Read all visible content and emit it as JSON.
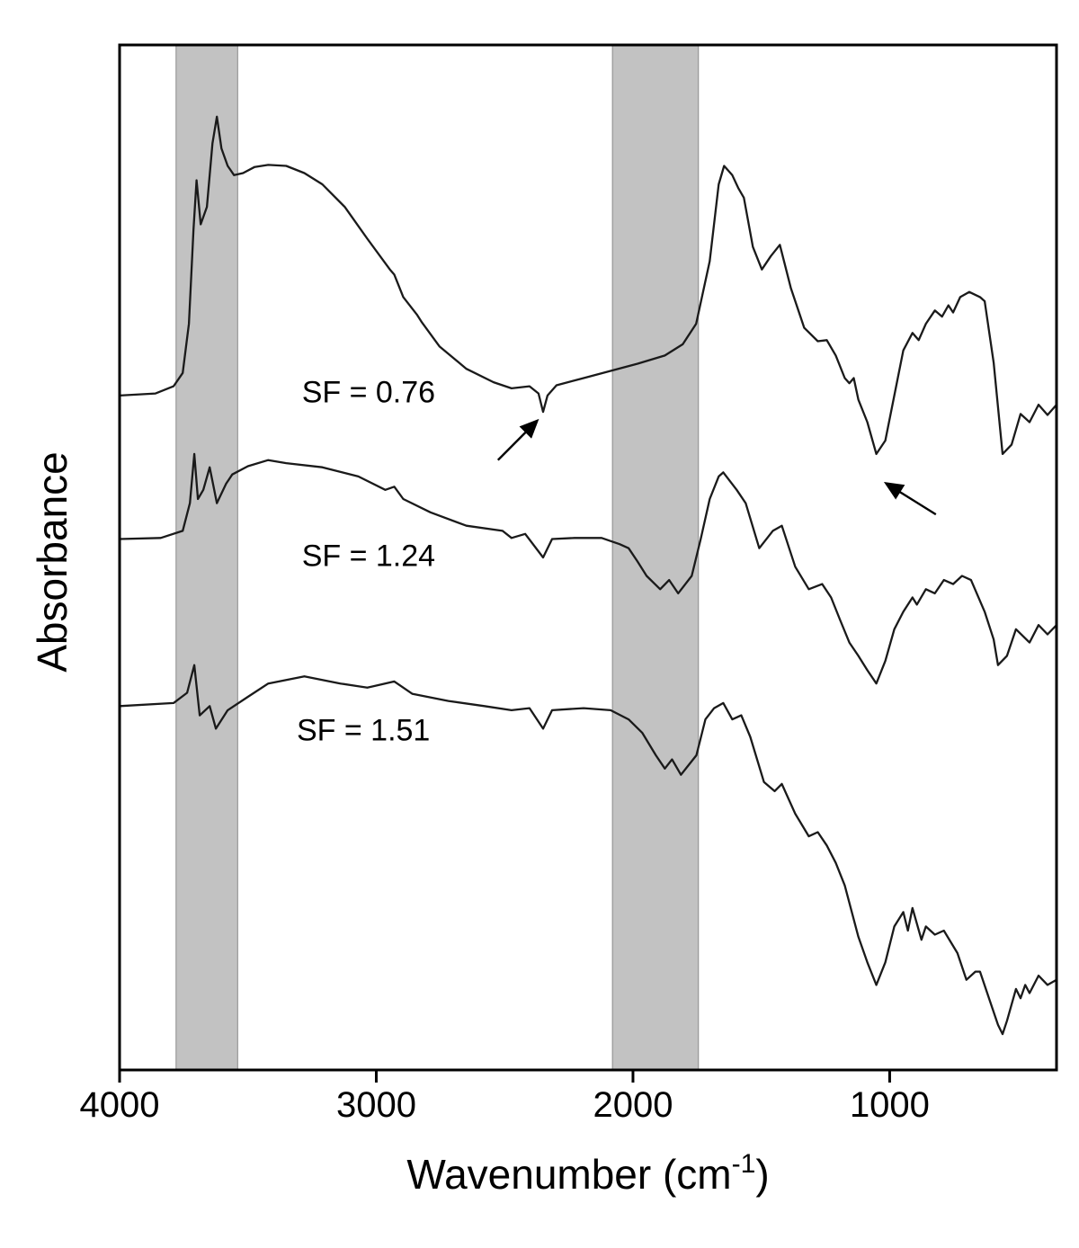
{
  "figure": {
    "background": "#ffffff",
    "ylabel": "Absorbance",
    "xlabel_prefix": "Wavenumber (cm",
    "xlabel_sup": "-1",
    "xlabel_suffix": ")"
  },
  "chart_data": {
    "type": "line",
    "xlabel": "Wavenumber (cm-1)",
    "ylabel": "Absorbance",
    "line_color": "#1a1a1a",
    "x_axis": {
      "left": 4000,
      "right": 350,
      "reversed": true,
      "ticks": [
        4000,
        3000,
        2000,
        1000
      ],
      "tick_labels": [
        "4000",
        "3000",
        "2000",
        "1000"
      ]
    },
    "y_axis": {
      "min": 0,
      "max": 10,
      "ticks": [],
      "note": "absorbance, arbitrary units, no tick labels"
    },
    "shaded_bands": [
      {
        "x1": 3780,
        "x2": 3540,
        "color": "#c2c2c2"
      },
      {
        "x1": 2080,
        "x2": 1745,
        "color": "#c2c2c2"
      }
    ],
    "annotations": [
      {
        "text": "SF = 0.76",
        "x": 3290,
        "y": 6.62
      },
      {
        "text": "SF = 1.24",
        "x": 3290,
        "y": 5.02
      },
      {
        "text": "SF = 1.51",
        "x": 3310,
        "y": 3.32
      }
    ],
    "arrows": [
      {
        "x1": 2526,
        "y1": 5.95,
        "x2": 2375,
        "y2": 6.33
      },
      {
        "x1": 820,
        "y1": 5.42,
        "x2": 1012,
        "y2": 5.72
      }
    ],
    "series": [
      {
        "name": "SF = 0.76",
        "points": [
          [
            4000,
            6.58
          ],
          [
            3860,
            6.6
          ],
          [
            3790,
            6.67
          ],
          [
            3754,
            6.8
          ],
          [
            3730,
            7.28
          ],
          [
            3712,
            8.2
          ],
          [
            3700,
            8.68
          ],
          [
            3684,
            8.25
          ],
          [
            3660,
            8.42
          ],
          [
            3638,
            9.04
          ],
          [
            3621,
            9.3
          ],
          [
            3603,
            8.99
          ],
          [
            3579,
            8.82
          ],
          [
            3554,
            8.73
          ],
          [
            3519,
            8.75
          ],
          [
            3474,
            8.81
          ],
          [
            3421,
            8.83
          ],
          [
            3351,
            8.82
          ],
          [
            3280,
            8.75
          ],
          [
            3210,
            8.64
          ],
          [
            3123,
            8.42
          ],
          [
            3035,
            8.11
          ],
          [
            2947,
            7.81
          ],
          [
            2930,
            7.76
          ],
          [
            2895,
            7.54
          ],
          [
            2842,
            7.37
          ],
          [
            2824,
            7.3
          ],
          [
            2754,
            7.06
          ],
          [
            2649,
            6.84
          ],
          [
            2543,
            6.71
          ],
          [
            2473,
            6.65
          ],
          [
            2403,
            6.67
          ],
          [
            2368,
            6.6
          ],
          [
            2350,
            6.42
          ],
          [
            2333,
            6.58
          ],
          [
            2298,
            6.68
          ],
          [
            2192,
            6.75
          ],
          [
            2087,
            6.82
          ],
          [
            1982,
            6.89
          ],
          [
            1876,
            6.97
          ],
          [
            1806,
            7.08
          ],
          [
            1754,
            7.28
          ],
          [
            1701,
            7.89
          ],
          [
            1666,
            8.64
          ],
          [
            1645,
            8.82
          ],
          [
            1613,
            8.73
          ],
          [
            1589,
            8.6
          ],
          [
            1568,
            8.51
          ],
          [
            1533,
            8.03
          ],
          [
            1498,
            7.81
          ],
          [
            1463,
            7.94
          ],
          [
            1428,
            8.05
          ],
          [
            1385,
            7.63
          ],
          [
            1333,
            7.24
          ],
          [
            1280,
            7.11
          ],
          [
            1245,
            7.12
          ],
          [
            1210,
            6.97
          ],
          [
            1175,
            6.75
          ],
          [
            1157,
            6.7
          ],
          [
            1140,
            6.75
          ],
          [
            1122,
            6.54
          ],
          [
            1087,
            6.32
          ],
          [
            1052,
            6.01
          ],
          [
            1017,
            6.14
          ],
          [
            982,
            6.58
          ],
          [
            947,
            7.02
          ],
          [
            911,
            7.19
          ],
          [
            887,
            7.12
          ],
          [
            859,
            7.28
          ],
          [
            824,
            7.41
          ],
          [
            796,
            7.35
          ],
          [
            771,
            7.46
          ],
          [
            753,
            7.39
          ],
          [
            725,
            7.54
          ],
          [
            690,
            7.59
          ],
          [
            648,
            7.54
          ],
          [
            630,
            7.5
          ],
          [
            595,
            6.9
          ],
          [
            560,
            6.01
          ],
          [
            525,
            6.1
          ],
          [
            490,
            6.4
          ],
          [
            455,
            6.32
          ],
          [
            420,
            6.49
          ],
          [
            385,
            6.39
          ],
          [
            350,
            6.49
          ]
        ]
      },
      {
        "name": "SF = 1.24",
        "points": [
          [
            4000,
            5.18
          ],
          [
            3840,
            5.19
          ],
          [
            3754,
            5.26
          ],
          [
            3726,
            5.53
          ],
          [
            3709,
            6.01
          ],
          [
            3695,
            5.57
          ],
          [
            3674,
            5.66
          ],
          [
            3649,
            5.88
          ],
          [
            3621,
            5.53
          ],
          [
            3585,
            5.72
          ],
          [
            3561,
            5.81
          ],
          [
            3500,
            5.89
          ],
          [
            3421,
            5.95
          ],
          [
            3351,
            5.92
          ],
          [
            3210,
            5.88
          ],
          [
            3070,
            5.79
          ],
          [
            2965,
            5.66
          ],
          [
            2930,
            5.69
          ],
          [
            2895,
            5.57
          ],
          [
            2789,
            5.44
          ],
          [
            2649,
            5.31
          ],
          [
            2508,
            5.26
          ],
          [
            2473,
            5.19
          ],
          [
            2420,
            5.23
          ],
          [
            2350,
            5.0
          ],
          [
            2315,
            5.18
          ],
          [
            2228,
            5.19
          ],
          [
            2122,
            5.19
          ],
          [
            2052,
            5.13
          ],
          [
            2017,
            5.09
          ],
          [
            1982,
            4.96
          ],
          [
            1947,
            4.82
          ],
          [
            1894,
            4.69
          ],
          [
            1859,
            4.78
          ],
          [
            1824,
            4.65
          ],
          [
            1771,
            4.82
          ],
          [
            1736,
            5.18
          ],
          [
            1701,
            5.57
          ],
          [
            1666,
            5.79
          ],
          [
            1648,
            5.83
          ],
          [
            1596,
            5.66
          ],
          [
            1561,
            5.53
          ],
          [
            1508,
            5.09
          ],
          [
            1455,
            5.26
          ],
          [
            1420,
            5.31
          ],
          [
            1368,
            4.91
          ],
          [
            1315,
            4.69
          ],
          [
            1263,
            4.74
          ],
          [
            1228,
            4.61
          ],
          [
            1193,
            4.39
          ],
          [
            1157,
            4.17
          ],
          [
            1122,
            4.04
          ],
          [
            1087,
            3.9
          ],
          [
            1052,
            3.77
          ],
          [
            1017,
            3.99
          ],
          [
            982,
            4.3
          ],
          [
            947,
            4.47
          ],
          [
            911,
            4.61
          ],
          [
            894,
            4.54
          ],
          [
            859,
            4.69
          ],
          [
            824,
            4.65
          ],
          [
            789,
            4.78
          ],
          [
            753,
            4.74
          ],
          [
            718,
            4.82
          ],
          [
            683,
            4.78
          ],
          [
            630,
            4.47
          ],
          [
            595,
            4.2
          ],
          [
            578,
            3.95
          ],
          [
            543,
            4.04
          ],
          [
            508,
            4.3
          ],
          [
            455,
            4.17
          ],
          [
            420,
            4.34
          ],
          [
            385,
            4.25
          ],
          [
            350,
            4.34
          ]
        ]
      },
      {
        "name": "SF = 1.51",
        "points": [
          [
            4000,
            3.55
          ],
          [
            3790,
            3.58
          ],
          [
            3737,
            3.68
          ],
          [
            3709,
            3.95
          ],
          [
            3688,
            3.46
          ],
          [
            3649,
            3.55
          ],
          [
            3625,
            3.33
          ],
          [
            3579,
            3.51
          ],
          [
            3500,
            3.64
          ],
          [
            3421,
            3.77
          ],
          [
            3280,
            3.84
          ],
          [
            3140,
            3.77
          ],
          [
            3035,
            3.73
          ],
          [
            2930,
            3.79
          ],
          [
            2860,
            3.67
          ],
          [
            2719,
            3.6
          ],
          [
            2579,
            3.55
          ],
          [
            2473,
            3.51
          ],
          [
            2403,
            3.53
          ],
          [
            2350,
            3.33
          ],
          [
            2315,
            3.51
          ],
          [
            2192,
            3.53
          ],
          [
            2087,
            3.51
          ],
          [
            2017,
            3.42
          ],
          [
            1964,
            3.29
          ],
          [
            1911,
            3.07
          ],
          [
            1876,
            2.94
          ],
          [
            1848,
            3.03
          ],
          [
            1813,
            2.88
          ],
          [
            1753,
            3.07
          ],
          [
            1718,
            3.42
          ],
          [
            1684,
            3.53
          ],
          [
            1648,
            3.58
          ],
          [
            1613,
            3.42
          ],
          [
            1578,
            3.46
          ],
          [
            1543,
            3.25
          ],
          [
            1490,
            2.81
          ],
          [
            1448,
            2.72
          ],
          [
            1420,
            2.79
          ],
          [
            1368,
            2.5
          ],
          [
            1315,
            2.28
          ],
          [
            1280,
            2.32
          ],
          [
            1245,
            2.19
          ],
          [
            1210,
            2.02
          ],
          [
            1175,
            1.8
          ],
          [
            1122,
            1.3
          ],
          [
            1087,
            1.05
          ],
          [
            1052,
            0.83
          ],
          [
            1017,
            1.05
          ],
          [
            982,
            1.4
          ],
          [
            947,
            1.54
          ],
          [
            929,
            1.36
          ],
          [
            911,
            1.58
          ],
          [
            876,
            1.27
          ],
          [
            859,
            1.4
          ],
          [
            824,
            1.32
          ],
          [
            789,
            1.36
          ],
          [
            736,
            1.14
          ],
          [
            701,
            0.88
          ],
          [
            666,
            0.96
          ],
          [
            648,
            0.96
          ],
          [
            613,
            0.7
          ],
          [
            578,
            0.44
          ],
          [
            560,
            0.35
          ],
          [
            543,
            0.48
          ],
          [
            508,
            0.79
          ],
          [
            490,
            0.7
          ],
          [
            472,
            0.83
          ],
          [
            455,
            0.75
          ],
          [
            420,
            0.92
          ],
          [
            385,
            0.83
          ],
          [
            350,
            0.88
          ]
        ]
      }
    ]
  }
}
